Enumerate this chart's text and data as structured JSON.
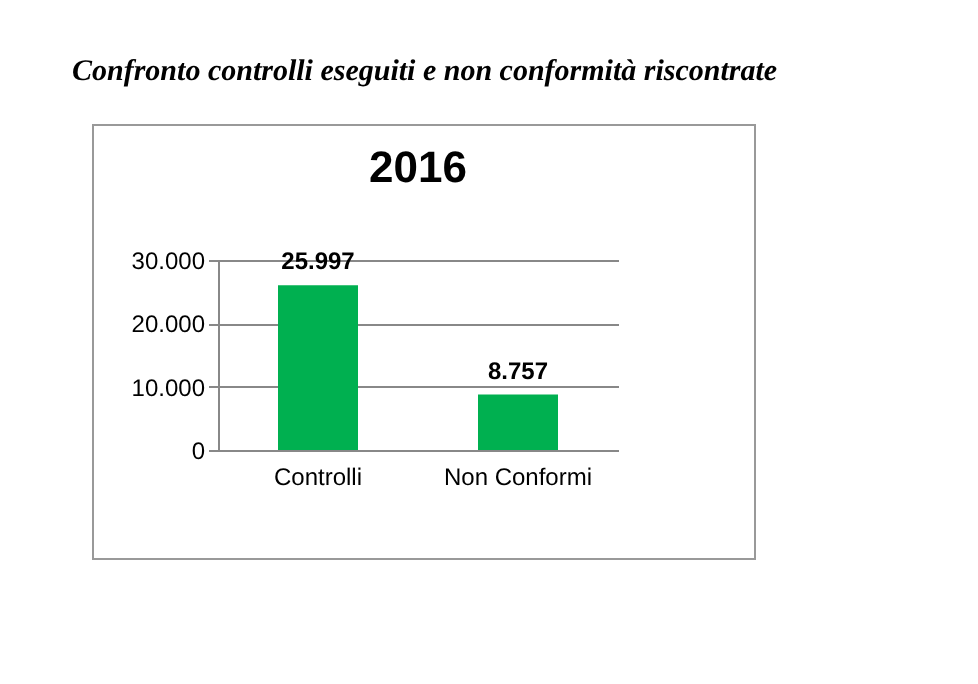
{
  "chart_data": {
    "type": "bar",
    "title": "Confronto controlli eseguiti e non conformità riscontrate",
    "subtitle": "2016",
    "categories": [
      "Controlli",
      "Non Conformi"
    ],
    "values": [
      25997,
      8757
    ],
    "value_labels": [
      "25.997",
      "8.757"
    ],
    "color": "#00b050",
    "ylim": [
      0,
      30000
    ],
    "yticks": [
      {
        "value": 0,
        "label": "0"
      },
      {
        "value": 10000,
        "label": "10.000"
      },
      {
        "value": 20000,
        "label": "20.000"
      },
      {
        "value": 30000,
        "label": "30.000"
      }
    ],
    "grid": "y"
  }
}
